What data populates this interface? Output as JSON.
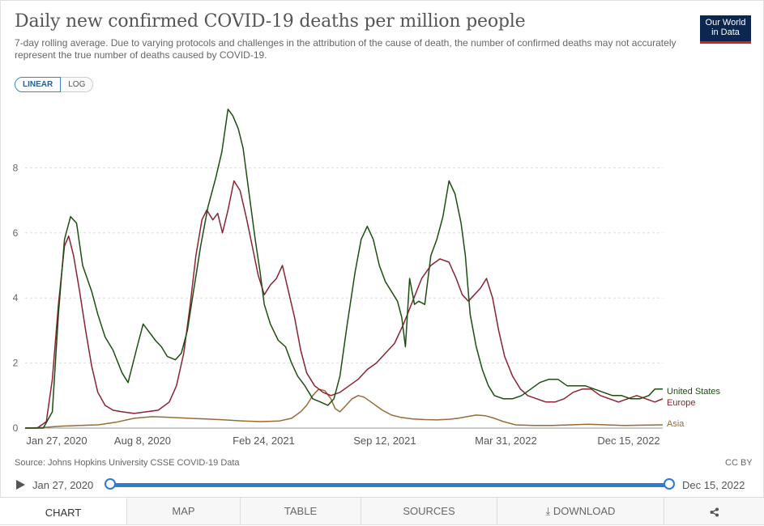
{
  "title": "Daily new confirmed COVID-19 deaths per million people",
  "subtitle": "7-day rolling average. Due to varying protocols and challenges in the attribution of the cause of death, the number of confirmed deaths may not accurately represent the true number of deaths caused by COVID-19.",
  "logo": {
    "line1": "Our World",
    "line2": "in Data"
  },
  "scale": {
    "linear": "LINEAR",
    "log": "LOG"
  },
  "source": "Source: Johns Hopkins University CSSE COVID-19 Data",
  "license": "CC BY",
  "timeline": {
    "start": "Jan 27, 2020",
    "end": "Dec 15, 2022"
  },
  "tabs": [
    "CHART",
    "MAP",
    "TABLE",
    "SOURCES",
    "DOWNLOAD",
    "share"
  ],
  "chart_data": {
    "type": "line",
    "title": "Daily new confirmed COVID-19 deaths per million people",
    "ylim": [
      0,
      9.9
    ],
    "yticks": [
      0,
      2,
      4,
      6,
      8
    ],
    "xlim_days": [
      0,
      1053
    ],
    "xticks": [
      {
        "day": 0,
        "label": "Jan 27, 2020"
      },
      {
        "day": 194,
        "label": "Aug 8, 2020"
      },
      {
        "day": 394,
        "label": "Feb 24, 2021"
      },
      {
        "day": 594,
        "label": "Sep 12, 2021"
      },
      {
        "day": 794,
        "label": "Mar 31, 2022"
      },
      {
        "day": 1053,
        "label": "Dec 15, 2022"
      }
    ],
    "series": [
      {
        "name": "United States",
        "color": "#1e4d12",
        "points": [
          [
            0,
            0
          ],
          [
            30,
            0
          ],
          [
            45,
            0.5
          ],
          [
            55,
            3.5
          ],
          [
            65,
            5.8
          ],
          [
            75,
            6.5
          ],
          [
            85,
            6.3
          ],
          [
            95,
            5.0
          ],
          [
            110,
            4.2
          ],
          [
            120,
            3.5
          ],
          [
            132,
            2.8
          ],
          [
            145,
            2.4
          ],
          [
            160,
            1.7
          ],
          [
            170,
            1.4
          ],
          [
            185,
            2.5
          ],
          [
            195,
            3.2
          ],
          [
            203,
            3.0
          ],
          [
            215,
            2.7
          ],
          [
            225,
            2.5
          ],
          [
            235,
            2.2
          ],
          [
            248,
            2.1
          ],
          [
            258,
            2.3
          ],
          [
            268,
            3.0
          ],
          [
            278,
            4.2
          ],
          [
            290,
            5.6
          ],
          [
            302,
            6.8
          ],
          [
            315,
            7.7
          ],
          [
            325,
            8.5
          ],
          [
            335,
            9.8
          ],
          [
            343,
            9.6
          ],
          [
            352,
            9.2
          ],
          [
            360,
            8.6
          ],
          [
            370,
            7.2
          ],
          [
            380,
            5.8
          ],
          [
            388,
            4.8
          ],
          [
            395,
            3.8
          ],
          [
            405,
            3.2
          ],
          [
            418,
            2.7
          ],
          [
            430,
            2.5
          ],
          [
            440,
            2.0
          ],
          [
            450,
            1.6
          ],
          [
            462,
            1.3
          ],
          [
            475,
            0.9
          ],
          [
            488,
            0.8
          ],
          [
            500,
            0.7
          ],
          [
            510,
            0.9
          ],
          [
            520,
            1.6
          ],
          [
            532,
            3.2
          ],
          [
            545,
            4.8
          ],
          [
            555,
            5.8
          ],
          [
            565,
            6.2
          ],
          [
            575,
            5.8
          ],
          [
            585,
            5.0
          ],
          [
            595,
            4.5
          ],
          [
            605,
            4.2
          ],
          [
            615,
            3.9
          ],
          [
            622,
            3.4
          ],
          [
            628,
            2.5
          ],
          [
            635,
            4.6
          ],
          [
            643,
            3.8
          ],
          [
            650,
            3.9
          ],
          [
            660,
            3.8
          ],
          [
            670,
            5.3
          ],
          [
            680,
            5.8
          ],
          [
            690,
            6.5
          ],
          [
            700,
            7.6
          ],
          [
            710,
            7.2
          ],
          [
            720,
            6.3
          ],
          [
            727,
            5.3
          ],
          [
            735,
            3.5
          ],
          [
            745,
            2.5
          ],
          [
            755,
            1.8
          ],
          [
            765,
            1.3
          ],
          [
            775,
            1.0
          ],
          [
            790,
            0.9
          ],
          [
            805,
            0.9
          ],
          [
            820,
            1.0
          ],
          [
            835,
            1.2
          ],
          [
            850,
            1.4
          ],
          [
            865,
            1.5
          ],
          [
            880,
            1.5
          ],
          [
            895,
            1.3
          ],
          [
            910,
            1.3
          ],
          [
            925,
            1.3
          ],
          [
            940,
            1.2
          ],
          [
            955,
            1.1
          ],
          [
            970,
            1.0
          ],
          [
            985,
            1.0
          ],
          [
            1000,
            0.9
          ],
          [
            1015,
            0.9
          ],
          [
            1030,
            1.0
          ],
          [
            1040,
            1.2
          ],
          [
            1053,
            1.2
          ]
        ]
      },
      {
        "name": "Europe",
        "color": "#8a2333",
        "points": [
          [
            0,
            0
          ],
          [
            20,
            0
          ],
          [
            35,
            0.2
          ],
          [
            45,
            1.5
          ],
          [
            55,
            3.8
          ],
          [
            65,
            5.6
          ],
          [
            72,
            5.9
          ],
          [
            80,
            5.3
          ],
          [
            90,
            4.2
          ],
          [
            100,
            3.0
          ],
          [
            110,
            1.9
          ],
          [
            120,
            1.1
          ],
          [
            132,
            0.7
          ],
          [
            145,
            0.55
          ],
          [
            160,
            0.5
          ],
          [
            180,
            0.45
          ],
          [
            200,
            0.5
          ],
          [
            220,
            0.55
          ],
          [
            238,
            0.8
          ],
          [
            250,
            1.3
          ],
          [
            262,
            2.3
          ],
          [
            272,
            3.7
          ],
          [
            282,
            5.3
          ],
          [
            292,
            6.4
          ],
          [
            300,
            6.7
          ],
          [
            310,
            6.4
          ],
          [
            318,
            6.6
          ],
          [
            326,
            6.0
          ],
          [
            335,
            6.7
          ],
          [
            345,
            7.6
          ],
          [
            355,
            7.3
          ],
          [
            365,
            6.5
          ],
          [
            375,
            5.6
          ],
          [
            385,
            4.7
          ],
          [
            395,
            4.1
          ],
          [
            405,
            4.4
          ],
          [
            415,
            4.6
          ],
          [
            425,
            5.0
          ],
          [
            435,
            4.2
          ],
          [
            445,
            3.4
          ],
          [
            455,
            2.4
          ],
          [
            465,
            1.7
          ],
          [
            478,
            1.3
          ],
          [
            492,
            1.1
          ],
          [
            505,
            1.0
          ],
          [
            520,
            1.1
          ],
          [
            535,
            1.3
          ],
          [
            550,
            1.5
          ],
          [
            565,
            1.8
          ],
          [
            580,
            2.0
          ],
          [
            595,
            2.3
          ],
          [
            610,
            2.6
          ],
          [
            625,
            3.2
          ],
          [
            640,
            3.9
          ],
          [
            655,
            4.6
          ],
          [
            670,
            5.0
          ],
          [
            685,
            5.2
          ],
          [
            700,
            5.1
          ],
          [
            712,
            4.6
          ],
          [
            722,
            4.1
          ],
          [
            732,
            3.9
          ],
          [
            742,
            4.1
          ],
          [
            752,
            4.3
          ],
          [
            762,
            4.6
          ],
          [
            772,
            4.0
          ],
          [
            782,
            3.0
          ],
          [
            792,
            2.2
          ],
          [
            805,
            1.6
          ],
          [
            818,
            1.2
          ],
          [
            830,
            1.0
          ],
          [
            845,
            0.9
          ],
          [
            860,
            0.8
          ],
          [
            875,
            0.8
          ],
          [
            890,
            0.9
          ],
          [
            905,
            1.1
          ],
          [
            920,
            1.2
          ],
          [
            935,
            1.2
          ],
          [
            950,
            1.0
          ],
          [
            965,
            0.9
          ],
          [
            980,
            0.8
          ],
          [
            995,
            0.9
          ],
          [
            1010,
            1.0
          ],
          [
            1025,
            0.9
          ],
          [
            1040,
            0.8
          ],
          [
            1053,
            0.9
          ]
        ]
      },
      {
        "name": "Asia",
        "color": "#9a6a35",
        "points": [
          [
            0,
            0
          ],
          [
            30,
            0.02
          ],
          [
            60,
            0.06
          ],
          [
            90,
            0.08
          ],
          [
            120,
            0.1
          ],
          [
            150,
            0.18
          ],
          [
            180,
            0.3
          ],
          [
            210,
            0.35
          ],
          [
            240,
            0.33
          ],
          [
            270,
            0.3
          ],
          [
            300,
            0.28
          ],
          [
            330,
            0.25
          ],
          [
            360,
            0.22
          ],
          [
            390,
            0.2
          ],
          [
            420,
            0.22
          ],
          [
            440,
            0.3
          ],
          [
            455,
            0.5
          ],
          [
            465,
            0.7
          ],
          [
            475,
            1.0
          ],
          [
            485,
            1.2
          ],
          [
            495,
            1.15
          ],
          [
            505,
            0.9
          ],
          [
            512,
            0.6
          ],
          [
            520,
            0.5
          ],
          [
            530,
            0.7
          ],
          [
            540,
            0.9
          ],
          [
            550,
            1.0
          ],
          [
            560,
            0.95
          ],
          [
            575,
            0.75
          ],
          [
            590,
            0.55
          ],
          [
            605,
            0.4
          ],
          [
            620,
            0.33
          ],
          [
            640,
            0.28
          ],
          [
            660,
            0.26
          ],
          [
            680,
            0.25
          ],
          [
            700,
            0.27
          ],
          [
            715,
            0.3
          ],
          [
            730,
            0.35
          ],
          [
            745,
            0.4
          ],
          [
            760,
            0.38
          ],
          [
            775,
            0.3
          ],
          [
            790,
            0.2
          ],
          [
            810,
            0.1
          ],
          [
            840,
            0.08
          ],
          [
            870,
            0.08
          ],
          [
            900,
            0.1
          ],
          [
            930,
            0.12
          ],
          [
            960,
            0.1
          ],
          [
            990,
            0.08
          ],
          [
            1020,
            0.09
          ],
          [
            1053,
            0.1
          ]
        ]
      }
    ]
  }
}
